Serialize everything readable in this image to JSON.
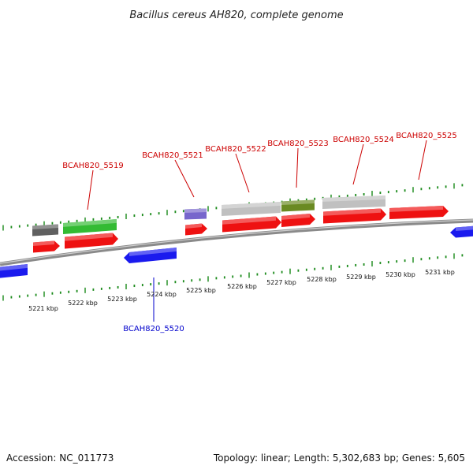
{
  "header": {
    "title": "Bacillus cereus AH820, complete genome"
  },
  "footer": {
    "accession": "Accession: NC_011773",
    "summary": "Topology: linear; Length: 5,302,683 bp; Genes: 5,605"
  },
  "colors": {
    "tick": "#1a8a1a",
    "backbone": "#8a8a8a",
    "cds_red": "#ee1111",
    "cds_blue": "#1a1aee",
    "cds_green": "#33bb33",
    "cds_gray": "#c0c0c0",
    "cds_darkgray": "#606060",
    "cds_olive": "#6a8a22",
    "cds_purple": "#7766cc",
    "label_red": "#cc0000",
    "label_blue": "#0000cc"
  },
  "scale_labels": [
    {
      "text": "5221 kbp"
    },
    {
      "text": "5222 kbp"
    },
    {
      "text": "5223 kbp"
    },
    {
      "text": "5224 kbp"
    },
    {
      "text": "5225 kbp"
    },
    {
      "text": "5226 kbp"
    },
    {
      "text": "5227 kbp"
    },
    {
      "text": "5228 kbp"
    },
    {
      "text": "5229 kbp"
    },
    {
      "text": "5230 kbp"
    },
    {
      "text": "5231 kbp"
    }
  ],
  "gene_labels": [
    {
      "text": "BCAH820_5519",
      "strand": "forward"
    },
    {
      "text": "BCAH820_5520",
      "strand": "reverse"
    },
    {
      "text": "BCAH820_5521",
      "strand": "forward"
    },
    {
      "text": "BCAH820_5522",
      "strand": "forward"
    },
    {
      "text": "BCAH820_5523",
      "strand": "forward"
    },
    {
      "text": "BCAH820_5524",
      "strand": "forward"
    },
    {
      "text": "BCAH820_5525",
      "strand": "forward"
    }
  ]
}
